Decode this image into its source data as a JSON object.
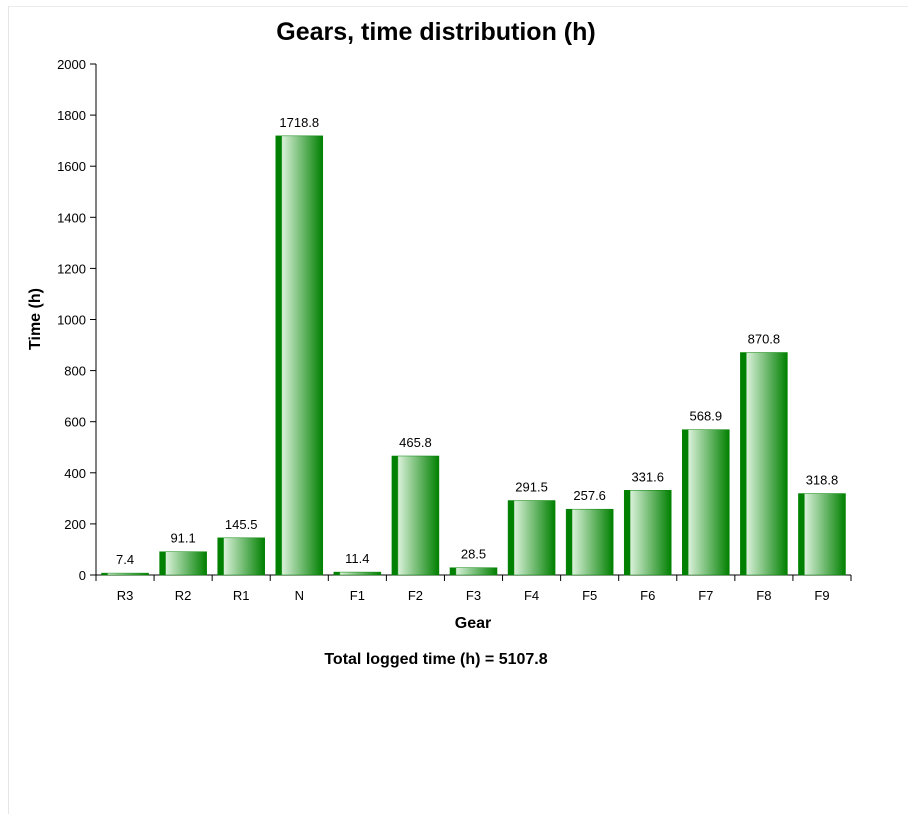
{
  "chart_data": {
    "type": "bar",
    "title": "Gears, time distribution (h)",
    "xlabel": "Gear",
    "ylabel": "Time (h)",
    "categories": [
      "R3",
      "R2",
      "R1",
      "N",
      "F1",
      "F2",
      "F3",
      "F4",
      "F5",
      "F6",
      "F7",
      "F8",
      "F9"
    ],
    "values": [
      7.4,
      91.1,
      145.5,
      1718.8,
      11.4,
      465.8,
      28.5,
      291.5,
      257.6,
      331.6,
      568.9,
      870.8,
      318.8
    ],
    "data_labels": [
      "7.4",
      "91.1",
      "145.5",
      "1718.8",
      "11.4",
      "465.8",
      "28.5",
      "291.5",
      "257.6",
      "331.6",
      "568.9",
      "870.8",
      "318.8"
    ],
    "ylim": [
      0,
      2000
    ],
    "yticks": [
      0,
      200,
      400,
      600,
      800,
      1000,
      1200,
      1400,
      1600,
      1800,
      2000
    ],
    "grid": false,
    "legend": "none",
    "bar_color": "#008000",
    "bar_highlight_color": "#d8f0d8",
    "footer": "Total logged time (h) = 5107.8"
  }
}
